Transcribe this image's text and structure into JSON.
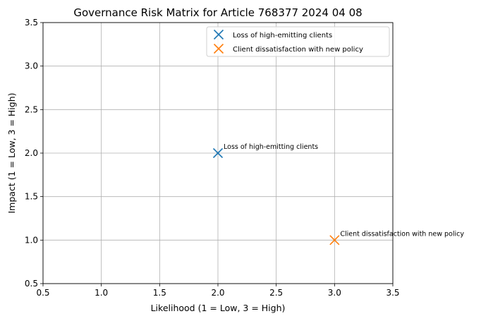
{
  "chart_data": {
    "type": "scatter",
    "title": "Governance Risk Matrix for Article 768377 2024 04 08",
    "xlabel": "Likelihood (1 = Low, 3 = High)",
    "ylabel": "Impact (1 = Low, 3 = High)",
    "xlim": [
      0.5,
      3.5
    ],
    "ylim": [
      0.5,
      3.5
    ],
    "xticks": [
      0.5,
      1.0,
      1.5,
      2.0,
      2.5,
      3.0,
      3.5
    ],
    "yticks": [
      0.5,
      1.0,
      1.5,
      2.0,
      2.5,
      3.0,
      3.5
    ],
    "xtick_labels": [
      "0.5",
      "1.0",
      "1.5",
      "2.0",
      "2.5",
      "3.0",
      "3.5"
    ],
    "ytick_labels": [
      "0.5",
      "1.0",
      "1.5",
      "2.0",
      "2.5",
      "3.0",
      "3.5"
    ],
    "grid": true,
    "legend_position": "top-right",
    "marker": "x",
    "series": [
      {
        "name": "Loss of high-emitting clients",
        "x": 2,
        "y": 2,
        "color": "#1f77b4",
        "annotation": "Loss of high-emitting clients"
      },
      {
        "name": "Client dissatisfaction with new policy",
        "x": 3,
        "y": 1,
        "color": "#ff7f0e",
        "annotation": "Client dissatisfaction with new policy"
      }
    ]
  }
}
